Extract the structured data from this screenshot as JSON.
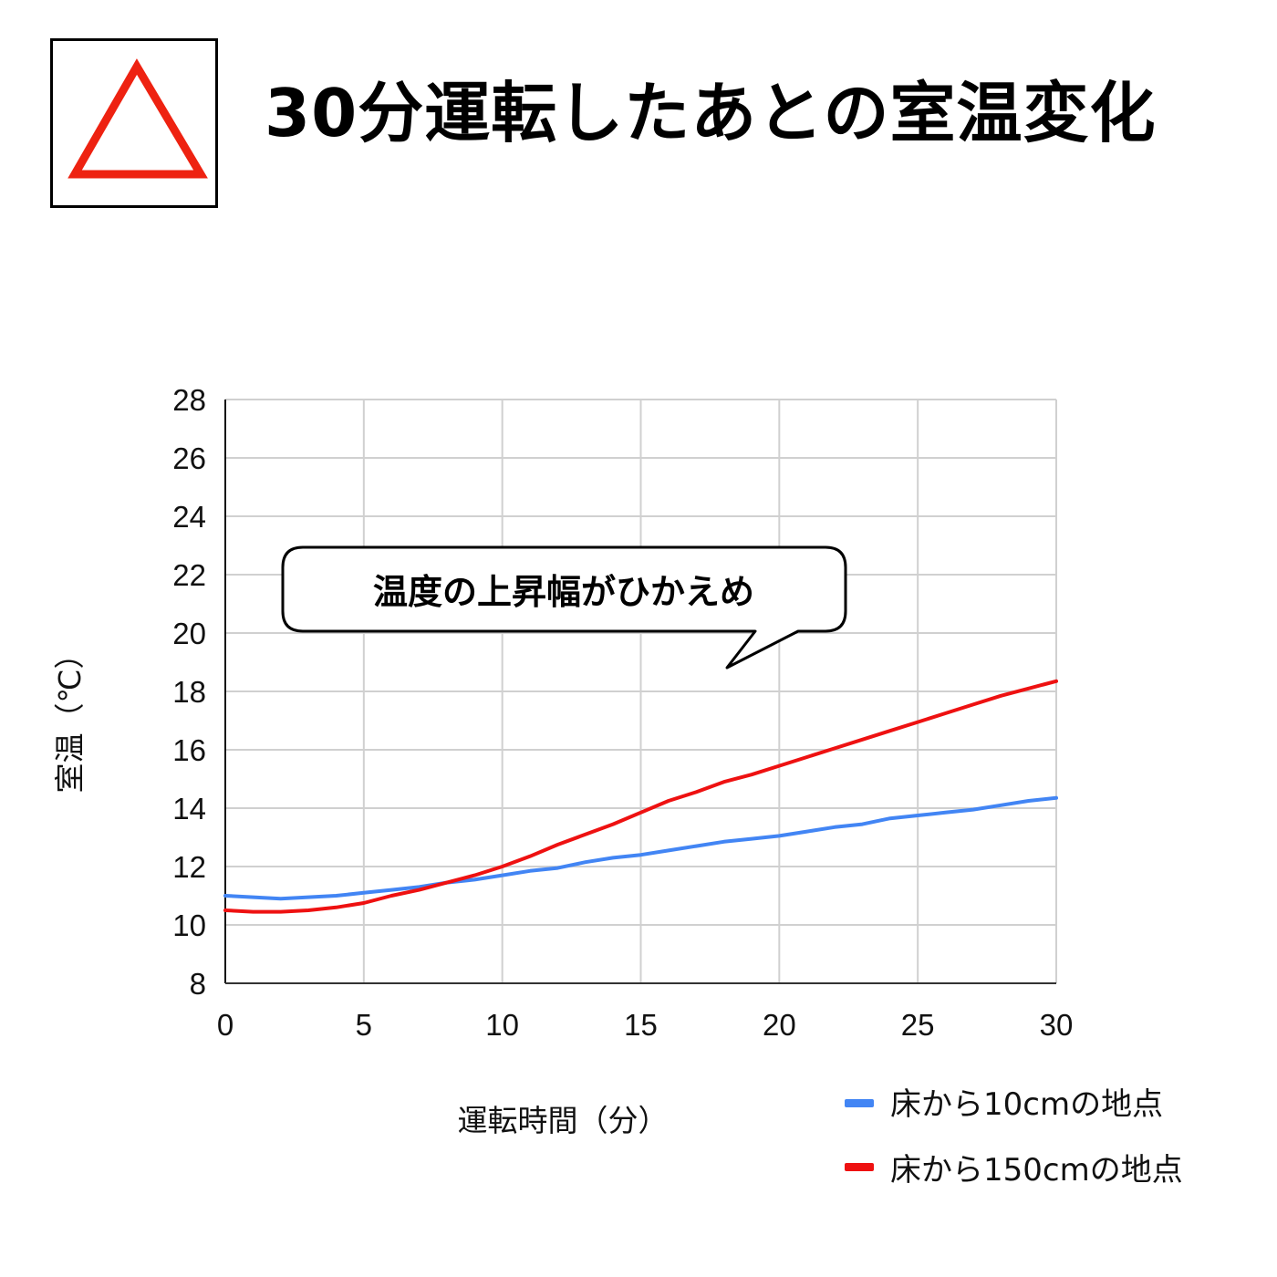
{
  "header": {
    "title": "30分運転したあとの室温変化",
    "badge_icon": "warning-triangle-icon",
    "badge_color": "#ee2211"
  },
  "chart_data": {
    "type": "line",
    "title": "30分運転したあとの室温変化",
    "xlabel": "運転時間（分）",
    "ylabel": "室温（℃）",
    "xlim": [
      0,
      30
    ],
    "ylim": [
      8,
      28
    ],
    "x_ticks": [
      0,
      5,
      10,
      15,
      20,
      25,
      30
    ],
    "y_ticks": [
      8,
      10,
      12,
      14,
      16,
      18,
      20,
      22,
      24,
      26,
      28
    ],
    "grid": true,
    "legend_position": "bottom-right",
    "x": [
      0,
      1,
      2,
      3,
      4,
      5,
      6,
      7,
      8,
      9,
      10,
      11,
      12,
      13,
      14,
      15,
      16,
      17,
      18,
      19,
      20,
      21,
      22,
      23,
      24,
      25,
      26,
      27,
      28,
      29,
      30
    ],
    "series": [
      {
        "name": "床から10cmの地点",
        "color": "#4285f4",
        "values": [
          11.0,
          10.95,
          10.9,
          10.95,
          11.0,
          11.1,
          11.2,
          11.3,
          11.45,
          11.55,
          11.7,
          11.85,
          11.95,
          12.15,
          12.3,
          12.4,
          12.55,
          12.7,
          12.85,
          12.95,
          13.05,
          13.2,
          13.35,
          13.45,
          13.65,
          13.75,
          13.85,
          13.95,
          14.1,
          14.25,
          14.35
        ]
      },
      {
        "name": "床から150cmの地点",
        "color": "#ee1111",
        "values": [
          10.5,
          10.45,
          10.45,
          10.5,
          10.6,
          10.75,
          11.0,
          11.2,
          11.45,
          11.7,
          12.0,
          12.35,
          12.75,
          13.1,
          13.45,
          13.85,
          14.25,
          14.55,
          14.9,
          15.15,
          15.45,
          15.75,
          16.05,
          16.35,
          16.65,
          16.95,
          17.25,
          17.55,
          17.85,
          18.1,
          18.35
        ]
      }
    ],
    "annotation": "温度の上昇幅がひかえめ"
  }
}
